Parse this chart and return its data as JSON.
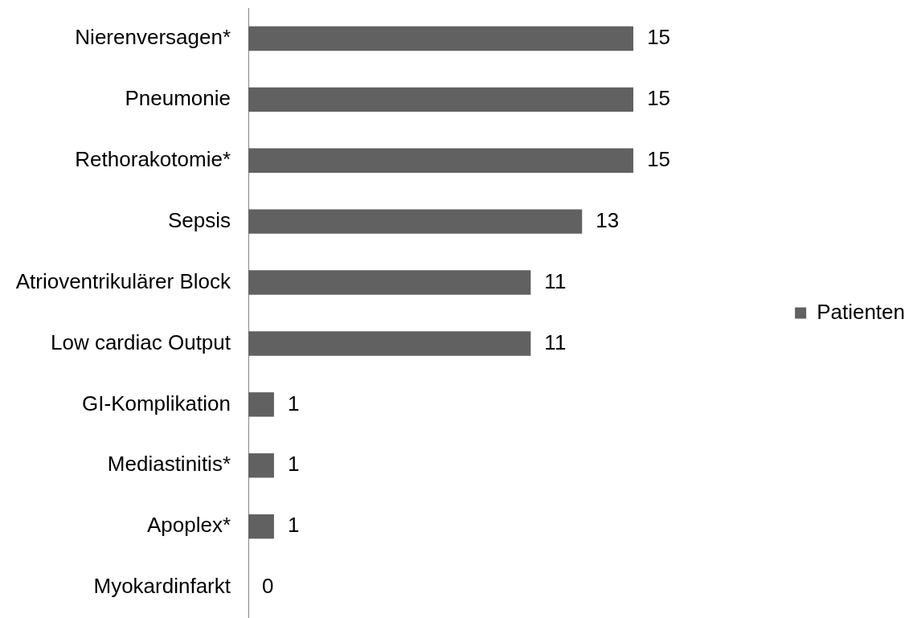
{
  "chart_data": {
    "type": "bar",
    "orientation": "horizontal",
    "categories": [
      "Nierenversagen*",
      "Pneumonie",
      "Rethorakotomie*",
      "Sepsis",
      "Atrioventrikulärer Block",
      "Low cardiac Output",
      "GI-Komplikation",
      "Mediastinitis*",
      "Apoplex*",
      "Myokardinfarkt"
    ],
    "series": [
      {
        "name": "Patienten",
        "color": "#616161",
        "values": [
          15,
          15,
          15,
          13,
          11,
          11,
          1,
          1,
          1,
          0
        ]
      }
    ],
    "data_labels": true,
    "legend": "right"
  }
}
